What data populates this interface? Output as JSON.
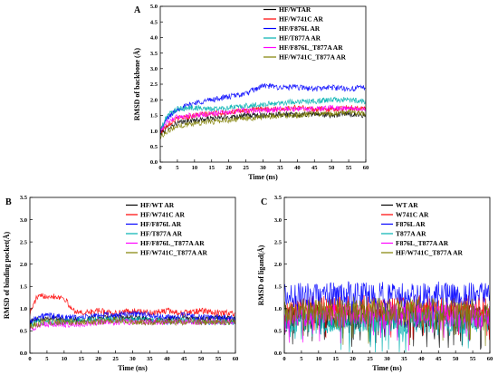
{
  "chart_data": [
    {
      "panel": "A",
      "type": "line",
      "xlabel": "Time (ns)",
      "ylabel": "RMSD of backbone (Å)",
      "xlim": [
        0,
        60
      ],
      "ylim": [
        0,
        5.0
      ],
      "xticks": [
        0,
        5,
        10,
        15,
        20,
        25,
        30,
        35,
        40,
        45,
        50,
        55,
        60
      ],
      "yticks": [
        0.0,
        0.5,
        1.0,
        1.5,
        2.0,
        2.5,
        3.0,
        3.5,
        4.0,
        4.5,
        5.0
      ],
      "legend_position": "top-right",
      "series": [
        {
          "name": "HF/WTAR",
          "color": "#000000",
          "x": [
            0,
            2,
            5,
            10,
            15,
            20,
            25,
            30,
            35,
            40,
            45,
            50,
            55,
            60
          ],
          "values": [
            0.9,
            1.1,
            1.25,
            1.35,
            1.4,
            1.45,
            1.5,
            1.5,
            1.55,
            1.5,
            1.55,
            1.5,
            1.55,
            1.5
          ]
        },
        {
          "name": "HF/W741C AR",
          "color": "#ff0000",
          "x": [
            0,
            2,
            5,
            10,
            15,
            20,
            25,
            30,
            35,
            40,
            45,
            50,
            55,
            60
          ],
          "values": [
            0.95,
            1.2,
            1.4,
            1.5,
            1.55,
            1.6,
            1.65,
            1.7,
            1.7,
            1.75,
            1.7,
            1.7,
            1.75,
            1.7
          ]
        },
        {
          "name": "HF/F876L AR",
          "color": "#0000ff",
          "x": [
            0,
            2,
            5,
            10,
            15,
            20,
            25,
            30,
            35,
            40,
            45,
            50,
            55,
            60
          ],
          "values": [
            1.0,
            1.4,
            1.7,
            1.9,
            2.0,
            2.1,
            2.2,
            2.45,
            2.4,
            2.4,
            2.35,
            2.4,
            2.35,
            2.4
          ]
        },
        {
          "name": "HF/T877A AR",
          "color": "#00b0b0",
          "x": [
            0,
            2,
            5,
            10,
            15,
            20,
            25,
            30,
            35,
            40,
            45,
            50,
            55,
            60
          ],
          "values": [
            1.0,
            1.5,
            1.7,
            1.75,
            1.7,
            1.75,
            1.8,
            1.85,
            1.9,
            1.95,
            1.95,
            2.0,
            2.0,
            1.95
          ]
        },
        {
          "name": "HF/F876L_T877A AR",
          "color": "#ff00ff",
          "x": [
            0,
            2,
            5,
            10,
            15,
            20,
            25,
            30,
            35,
            40,
            45,
            50,
            55,
            60
          ],
          "values": [
            1.0,
            1.3,
            1.45,
            1.5,
            1.55,
            1.6,
            1.65,
            1.65,
            1.7,
            1.7,
            1.7,
            1.75,
            1.7,
            1.7
          ]
        },
        {
          "name": "HF/W741C_T877A AR",
          "color": "#808000",
          "x": [
            0,
            2,
            5,
            10,
            15,
            20,
            25,
            30,
            35,
            40,
            45,
            50,
            55,
            60
          ],
          "values": [
            0.8,
            1.0,
            1.15,
            1.25,
            1.3,
            1.35,
            1.4,
            1.45,
            1.5,
            1.5,
            1.55,
            1.55,
            1.6,
            1.55
          ]
        }
      ]
    },
    {
      "panel": "B",
      "type": "line",
      "xlabel": "Time (ns)",
      "ylabel": "RMSD of binding pocket(Å)",
      "xlim": [
        0,
        60
      ],
      "ylim": [
        0,
        3.5
      ],
      "xticks": [
        0,
        5,
        10,
        15,
        20,
        25,
        30,
        35,
        40,
        45,
        50,
        55,
        60
      ],
      "yticks": [
        0.0,
        0.5,
        1.0,
        1.5,
        2.0,
        2.5,
        3.0,
        3.5
      ],
      "legend_position": "top-right",
      "series": [
        {
          "name": "HF/WT AR",
          "color": "#000000",
          "x": [
            0,
            2,
            5,
            10,
            15,
            20,
            25,
            30,
            35,
            40,
            45,
            50,
            55,
            60
          ],
          "values": [
            0.7,
            0.75,
            0.8,
            0.75,
            0.75,
            0.8,
            0.8,
            0.8,
            0.75,
            0.75,
            0.8,
            0.75,
            0.8,
            0.75
          ]
        },
        {
          "name": "HF/W741C AR",
          "color": "#ff0000",
          "x": [
            0,
            2,
            5,
            10,
            12,
            15,
            20,
            25,
            30,
            35,
            40,
            45,
            50,
            55,
            60
          ],
          "values": [
            0.9,
            1.25,
            1.3,
            1.25,
            1.0,
            0.9,
            0.95,
            0.9,
            0.95,
            0.9,
            0.95,
            0.9,
            0.95,
            0.9,
            0.9
          ]
        },
        {
          "name": "HF/F876L AR",
          "color": "#0000ff",
          "x": [
            0,
            2,
            5,
            10,
            15,
            20,
            25,
            30,
            35,
            40,
            45,
            50,
            55,
            60
          ],
          "values": [
            0.7,
            0.8,
            0.85,
            0.8,
            0.8,
            0.85,
            0.85,
            0.9,
            0.85,
            0.8,
            0.85,
            0.8,
            0.8,
            0.8
          ]
        },
        {
          "name": "HF/T877A AR",
          "color": "#00b0b0",
          "x": [
            0,
            2,
            5,
            10,
            15,
            20,
            25,
            30,
            35,
            40,
            45,
            50,
            55,
            60
          ],
          "values": [
            0.6,
            0.7,
            0.7,
            0.7,
            0.75,
            0.75,
            0.75,
            0.75,
            0.75,
            0.7,
            0.75,
            0.7,
            0.7,
            0.7
          ]
        },
        {
          "name": "HF/F876L_T877A AR",
          "color": "#ff00ff",
          "x": [
            0,
            2,
            5,
            10,
            15,
            20,
            25,
            30,
            35,
            40,
            45,
            50,
            55,
            60
          ],
          "values": [
            0.55,
            0.6,
            0.65,
            0.65,
            0.65,
            0.7,
            0.7,
            0.7,
            0.7,
            0.7,
            0.7,
            0.7,
            0.7,
            0.7
          ]
        },
        {
          "name": "HF/W741C_T877A AR",
          "color": "#808000",
          "x": [
            0,
            2,
            5,
            10,
            15,
            20,
            25,
            30,
            35,
            40,
            45,
            50,
            55,
            60
          ],
          "values": [
            0.6,
            0.65,
            0.7,
            0.7,
            0.7,
            0.7,
            0.75,
            0.7,
            0.7,
            0.7,
            0.7,
            0.7,
            0.7,
            0.7
          ]
        }
      ]
    },
    {
      "panel": "C",
      "type": "line",
      "xlabel": "Time (ns)",
      "ylabel": "RMSD of ligand(Å)",
      "xlim": [
        0,
        60
      ],
      "ylim": [
        0,
        3.5
      ],
      "xticks": [
        0,
        5,
        10,
        15,
        20,
        25,
        30,
        35,
        40,
        45,
        50,
        55,
        60
      ],
      "yticks": [
        0.0,
        0.5,
        1.0,
        1.5,
        2.0,
        2.5,
        3.0,
        3.5
      ],
      "legend_position": "top-right",
      "series": [
        {
          "name": "WT AR",
          "color": "#000000",
          "x": [
            0,
            5,
            10,
            15,
            20,
            25,
            30,
            35,
            40,
            45,
            50,
            55,
            60
          ],
          "values": [
            0.8,
            0.85,
            0.8,
            0.85,
            0.8,
            0.85,
            0.8,
            0.85,
            0.8,
            0.8,
            0.85,
            0.8,
            0.8
          ]
        },
        {
          "name": "W741C AR",
          "color": "#ff0000",
          "x": [
            0,
            5,
            10,
            15,
            20,
            25,
            30,
            35,
            40,
            45,
            50,
            55,
            60
          ],
          "values": [
            0.9,
            1.0,
            1.0,
            1.05,
            1.0,
            1.05,
            1.0,
            1.0,
            1.05,
            1.0,
            1.0,
            1.05,
            1.0
          ]
        },
        {
          "name": "F876L AR",
          "color": "#0000ff",
          "x": [
            0,
            5,
            10,
            15,
            20,
            25,
            30,
            35,
            40,
            45,
            50,
            55,
            60
          ],
          "values": [
            1.3,
            1.3,
            1.35,
            1.3,
            1.35,
            1.3,
            1.35,
            1.3,
            1.3,
            1.35,
            1.3,
            1.35,
            1.3
          ]
        },
        {
          "name": "T877A AR",
          "color": "#00b0b0",
          "x": [
            0,
            5,
            10,
            15,
            20,
            25,
            30,
            35,
            40,
            45,
            50,
            55,
            60
          ],
          "values": [
            0.7,
            0.75,
            0.7,
            0.75,
            0.7,
            0.7,
            0.75,
            0.7,
            0.7,
            0.75,
            0.7,
            0.7,
            0.7
          ]
        },
        {
          "name": "F876L_T877A AR",
          "color": "#ff00ff",
          "x": [
            0,
            5,
            10,
            15,
            20,
            25,
            30,
            35,
            40,
            45,
            50,
            55,
            60
          ],
          "values": [
            0.8,
            0.85,
            0.9,
            0.85,
            0.9,
            0.85,
            0.9,
            0.85,
            0.85,
            0.9,
            0.85,
            0.85,
            0.85
          ]
        },
        {
          "name": "HF/W741C_T877A AR",
          "color": "#808000",
          "x": [
            0,
            5,
            10,
            15,
            20,
            25,
            30,
            35,
            40,
            45,
            50,
            55,
            60
          ],
          "values": [
            0.9,
            0.95,
            1.0,
            0.95,
            1.0,
            0.95,
            1.0,
            0.95,
            1.0,
            0.95,
            1.0,
            0.95,
            0.95
          ]
        }
      ]
    }
  ]
}
